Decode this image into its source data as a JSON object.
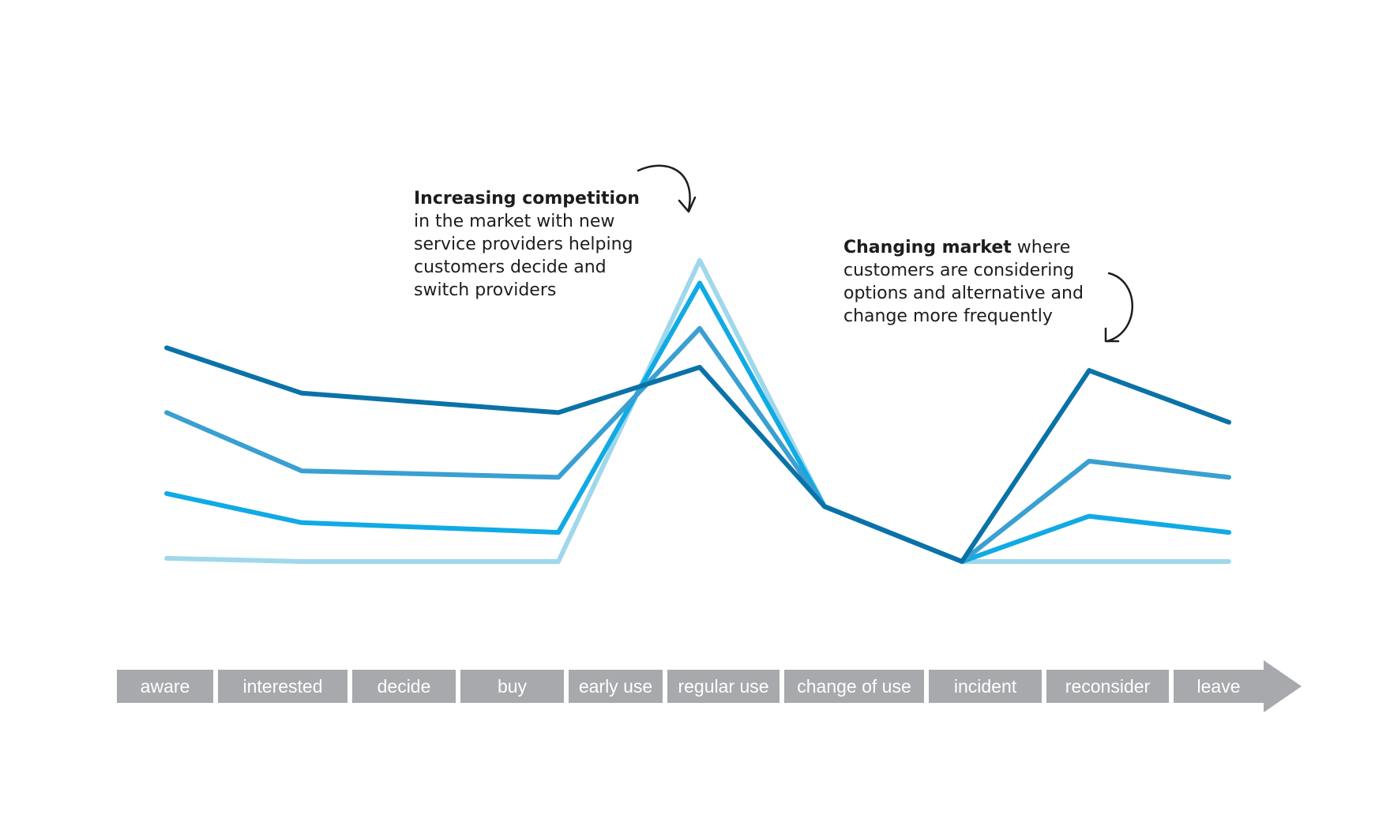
{
  "chart_data": {
    "type": "line",
    "title": "",
    "xlabel": "",
    "ylabel": "",
    "categories": [
      "aware",
      "interested",
      "decide",
      "buy",
      "early use",
      "regular use",
      "change of use",
      "incident",
      "reconsider",
      "leave"
    ],
    "series": [
      {
        "color": "#0b72a8",
        "values": [
          6.6,
          5.2,
          null,
          4.6,
          null,
          6.0,
          1.7,
          0.0,
          5.9,
          4.3
        ]
      },
      {
        "color": "#3a9fd1",
        "values": [
          4.6,
          2.8,
          null,
          2.6,
          null,
          7.2,
          1.7,
          0.0,
          3.1,
          2.6
        ]
      },
      {
        "color": "#10aae4",
        "values": [
          2.1,
          1.2,
          null,
          0.9,
          null,
          8.6,
          1.7,
          0.0,
          1.4,
          0.9
        ]
      },
      {
        "color": "#9fd8ea",
        "values": [
          0.1,
          0.0,
          null,
          0.0,
          null,
          9.3,
          1.7,
          0.0,
          0.0,
          0.0
        ]
      }
    ],
    "grid": false,
    "axis_color": "#a7a9ac"
  },
  "annotations": [
    {
      "bold": "Increasing competition",
      "rest": "",
      "lines": [
        "in the market with new",
        "service providers helping",
        "customers decide and",
        "switch providers"
      ]
    },
    {
      "bold": "Changing market",
      "rest": " where",
      "lines": [
        "customers are considering",
        "options and alternative and",
        "change more frequently"
      ]
    }
  ]
}
